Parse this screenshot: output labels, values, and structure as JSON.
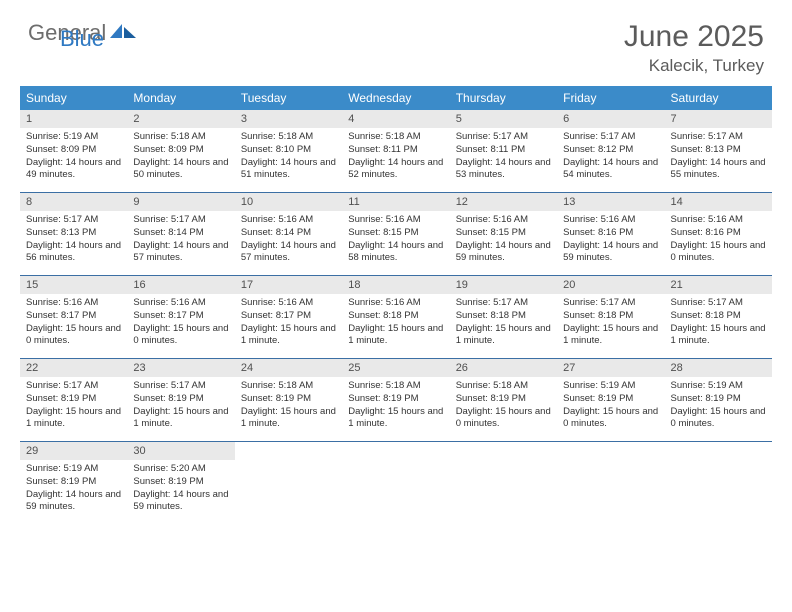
{
  "logo": {
    "text_general": "General",
    "text_blue": "Blue",
    "accent_color": "#2f79c2",
    "gray_color": "#6d6d6d"
  },
  "title": {
    "month": "June 2025",
    "location": "Kalecik, Turkey"
  },
  "colors": {
    "header_bg": "#3b8bc9",
    "header_text": "#ffffff",
    "daynum_bg": "#e9e9e9",
    "daynum_text": "#505050",
    "week_border": "#3b6fa4",
    "body_text": "#333333",
    "title_text": "#5b5b5b"
  },
  "days_of_week": [
    "Sunday",
    "Monday",
    "Tuesday",
    "Wednesday",
    "Thursday",
    "Friday",
    "Saturday"
  ],
  "weeks": [
    [
      {
        "n": "1",
        "sunrise": "5:19 AM",
        "sunset": "8:09 PM",
        "daylight": "14 hours and 49 minutes."
      },
      {
        "n": "2",
        "sunrise": "5:18 AM",
        "sunset": "8:09 PM",
        "daylight": "14 hours and 50 minutes."
      },
      {
        "n": "3",
        "sunrise": "5:18 AM",
        "sunset": "8:10 PM",
        "daylight": "14 hours and 51 minutes."
      },
      {
        "n": "4",
        "sunrise": "5:18 AM",
        "sunset": "8:11 PM",
        "daylight": "14 hours and 52 minutes."
      },
      {
        "n": "5",
        "sunrise": "5:17 AM",
        "sunset": "8:11 PM",
        "daylight": "14 hours and 53 minutes."
      },
      {
        "n": "6",
        "sunrise": "5:17 AM",
        "sunset": "8:12 PM",
        "daylight": "14 hours and 54 minutes."
      },
      {
        "n": "7",
        "sunrise": "5:17 AM",
        "sunset": "8:13 PM",
        "daylight": "14 hours and 55 minutes."
      }
    ],
    [
      {
        "n": "8",
        "sunrise": "5:17 AM",
        "sunset": "8:13 PM",
        "daylight": "14 hours and 56 minutes."
      },
      {
        "n": "9",
        "sunrise": "5:17 AM",
        "sunset": "8:14 PM",
        "daylight": "14 hours and 57 minutes."
      },
      {
        "n": "10",
        "sunrise": "5:16 AM",
        "sunset": "8:14 PM",
        "daylight": "14 hours and 57 minutes."
      },
      {
        "n": "11",
        "sunrise": "5:16 AM",
        "sunset": "8:15 PM",
        "daylight": "14 hours and 58 minutes."
      },
      {
        "n": "12",
        "sunrise": "5:16 AM",
        "sunset": "8:15 PM",
        "daylight": "14 hours and 59 minutes."
      },
      {
        "n": "13",
        "sunrise": "5:16 AM",
        "sunset": "8:16 PM",
        "daylight": "14 hours and 59 minutes."
      },
      {
        "n": "14",
        "sunrise": "5:16 AM",
        "sunset": "8:16 PM",
        "daylight": "15 hours and 0 minutes."
      }
    ],
    [
      {
        "n": "15",
        "sunrise": "5:16 AM",
        "sunset": "8:17 PM",
        "daylight": "15 hours and 0 minutes."
      },
      {
        "n": "16",
        "sunrise": "5:16 AM",
        "sunset": "8:17 PM",
        "daylight": "15 hours and 0 minutes."
      },
      {
        "n": "17",
        "sunrise": "5:16 AM",
        "sunset": "8:17 PM",
        "daylight": "15 hours and 1 minute."
      },
      {
        "n": "18",
        "sunrise": "5:16 AM",
        "sunset": "8:18 PM",
        "daylight": "15 hours and 1 minute."
      },
      {
        "n": "19",
        "sunrise": "5:17 AM",
        "sunset": "8:18 PM",
        "daylight": "15 hours and 1 minute."
      },
      {
        "n": "20",
        "sunrise": "5:17 AM",
        "sunset": "8:18 PM",
        "daylight": "15 hours and 1 minute."
      },
      {
        "n": "21",
        "sunrise": "5:17 AM",
        "sunset": "8:18 PM",
        "daylight": "15 hours and 1 minute."
      }
    ],
    [
      {
        "n": "22",
        "sunrise": "5:17 AM",
        "sunset": "8:19 PM",
        "daylight": "15 hours and 1 minute."
      },
      {
        "n": "23",
        "sunrise": "5:17 AM",
        "sunset": "8:19 PM",
        "daylight": "15 hours and 1 minute."
      },
      {
        "n": "24",
        "sunrise": "5:18 AM",
        "sunset": "8:19 PM",
        "daylight": "15 hours and 1 minute."
      },
      {
        "n": "25",
        "sunrise": "5:18 AM",
        "sunset": "8:19 PM",
        "daylight": "15 hours and 1 minute."
      },
      {
        "n": "26",
        "sunrise": "5:18 AM",
        "sunset": "8:19 PM",
        "daylight": "15 hours and 0 minutes."
      },
      {
        "n": "27",
        "sunrise": "5:19 AM",
        "sunset": "8:19 PM",
        "daylight": "15 hours and 0 minutes."
      },
      {
        "n": "28",
        "sunrise": "5:19 AM",
        "sunset": "8:19 PM",
        "daylight": "15 hours and 0 minutes."
      }
    ],
    [
      {
        "n": "29",
        "sunrise": "5:19 AM",
        "sunset": "8:19 PM",
        "daylight": "14 hours and 59 minutes."
      },
      {
        "n": "30",
        "sunrise": "5:20 AM",
        "sunset": "8:19 PM",
        "daylight": "14 hours and 59 minutes."
      },
      null,
      null,
      null,
      null,
      null
    ]
  ],
  "labels": {
    "sunrise": "Sunrise:",
    "sunset": "Sunset:",
    "daylight": "Daylight:"
  }
}
